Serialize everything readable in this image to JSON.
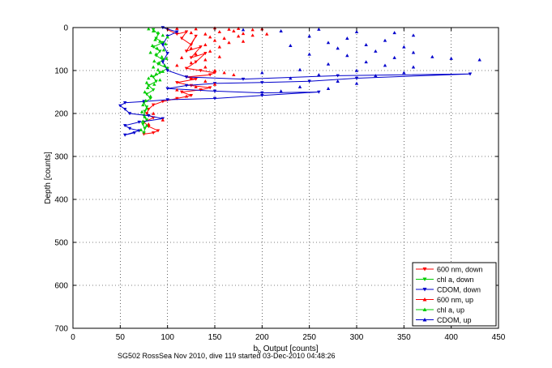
{
  "chart_data": {
    "type": "scatter",
    "xlabel_main": "b",
    "xlabel_sub": "b",
    "xlabel_rest": " Output [counts]",
    "ylabel": "Depth [counts]",
    "caption": "SG502 RossSea Nov 2010, dive 119 started 03-Dec-2010 04:48:26",
    "xlim": [
      0,
      450
    ],
    "ylim": [
      0,
      700
    ],
    "y_reversed": true,
    "grid": true,
    "x_ticks": [
      "0",
      "50",
      "100",
      "150",
      "200",
      "250",
      "300",
      "350",
      "400",
      "450"
    ],
    "y_ticks": [
      "0",
      "100",
      "200",
      "300",
      "400",
      "500",
      "600",
      "700"
    ],
    "legend_position": "bottom-right",
    "series": [
      {
        "name": "600 nm, down",
        "color": "#ff0000",
        "marker": "triangle-down",
        "connected": true,
        "points": [
          [
            100,
            5
          ],
          [
            110,
            15
          ],
          [
            120,
            10
          ],
          [
            115,
            25
          ],
          [
            125,
            40
          ],
          [
            130,
            20
          ],
          [
            120,
            55
          ],
          [
            135,
            45
          ],
          [
            125,
            70
          ],
          [
            140,
            60
          ],
          [
            130,
            80
          ],
          [
            120,
            95
          ],
          [
            135,
            100
          ],
          [
            150,
            105
          ],
          [
            145,
            110
          ],
          [
            120,
            115
          ],
          [
            130,
            120
          ],
          [
            110,
            128
          ],
          [
            125,
            135
          ],
          [
            145,
            140
          ],
          [
            135,
            145
          ],
          [
            115,
            150
          ],
          [
            125,
            158
          ],
          [
            110,
            165
          ],
          [
            95,
            172
          ],
          [
            85,
            180
          ],
          [
            80,
            190
          ],
          [
            78,
            200
          ],
          [
            85,
            210
          ],
          [
            75,
            220
          ],
          [
            80,
            230
          ],
          [
            90,
            240
          ],
          [
            85,
            245
          ],
          [
            75,
            248
          ]
        ]
      },
      {
        "name": "chl a, down",
        "color": "#00cc00",
        "marker": "triangle-down",
        "connected": true,
        "points": [
          [
            85,
            5
          ],
          [
            90,
            15
          ],
          [
            88,
            25
          ],
          [
            95,
            35
          ],
          [
            85,
            45
          ],
          [
            92,
            55
          ],
          [
            88,
            65
          ],
          [
            95,
            75
          ],
          [
            90,
            85
          ],
          [
            100,
            95
          ],
          [
            92,
            105
          ],
          [
            85,
            115
          ],
          [
            88,
            125
          ],
          [
            80,
            135
          ],
          [
            85,
            145
          ],
          [
            78,
            155
          ],
          [
            82,
            165
          ],
          [
            75,
            175
          ],
          [
            78,
            185
          ],
          [
            76,
            195
          ],
          [
            75,
            205
          ],
          [
            78,
            215
          ],
          [
            74,
            225
          ],
          [
            76,
            235
          ],
          [
            75,
            245
          ]
        ]
      },
      {
        "name": "CDOM, down",
        "color": "#0000cc",
        "marker": "triangle-down",
        "connected": true,
        "points": [
          [
            95,
            0
          ],
          [
            110,
            10
          ],
          [
            100,
            20
          ],
          [
            95,
            40
          ],
          [
            100,
            60
          ],
          [
            95,
            80
          ],
          [
            100,
            100
          ],
          [
            120,
            115
          ],
          [
            180,
            120
          ],
          [
            280,
            112
          ],
          [
            420,
            108
          ],
          [
            300,
            118
          ],
          [
            250,
            125
          ],
          [
            200,
            128
          ],
          [
            150,
            130
          ],
          [
            120,
            135
          ],
          [
            100,
            142
          ],
          [
            150,
            148
          ],
          [
            200,
            152
          ],
          [
            260,
            150
          ],
          [
            200,
            158
          ],
          [
            150,
            165
          ],
          [
            100,
            168
          ],
          [
            75,
            172
          ],
          [
            55,
            175
          ],
          [
            50,
            182
          ],
          [
            55,
            190
          ],
          [
            60,
            200
          ],
          [
            80,
            205
          ],
          [
            95,
            212
          ],
          [
            70,
            220
          ],
          [
            55,
            228
          ],
          [
            60,
            235
          ],
          [
            70,
            240
          ],
          [
            55,
            250
          ],
          [
            65,
            245
          ]
        ]
      },
      {
        "name": "600 nm, up",
        "color": "#ff0000",
        "marker": "triangle-up",
        "connected": false,
        "points": [
          [
            110,
            2
          ],
          [
            130,
            3
          ],
          [
            150,
            1
          ],
          [
            165,
            4
          ],
          [
            175,
            2
          ],
          [
            190,
            5
          ],
          [
            200,
            3
          ],
          [
            125,
            12
          ],
          [
            140,
            15
          ],
          [
            155,
            10
          ],
          [
            170,
            8
          ],
          [
            180,
            14
          ],
          [
            145,
            22
          ],
          [
            160,
            25
          ],
          [
            175,
            20
          ],
          [
            190,
            18
          ],
          [
            205,
            15
          ],
          [
            150,
            30
          ],
          [
            165,
            35
          ],
          [
            180,
            32
          ],
          [
            140,
            40
          ],
          [
            125,
            48
          ],
          [
            155,
            45
          ],
          [
            145,
            55
          ],
          [
            130,
            62
          ],
          [
            115,
            70
          ],
          [
            140,
            75
          ],
          [
            155,
            68
          ],
          [
            125,
            82
          ],
          [
            110,
            88
          ],
          [
            140,
            92
          ],
          [
            150,
            100
          ],
          [
            160,
            105
          ],
          [
            170,
            110
          ],
          [
            125,
            118
          ],
          [
            140,
            125
          ],
          [
            130,
            138
          ],
          [
            150,
            132
          ],
          [
            110,
            145
          ],
          [
            120,
            160
          ],
          [
            85,
            200
          ],
          [
            95,
            215
          ],
          [
            80,
            225
          ]
        ]
      },
      {
        "name": "chl a, up",
        "color": "#00cc00",
        "marker": "triangle-up",
        "connected": false,
        "points": [
          [
            80,
            3
          ],
          [
            85,
            8
          ],
          [
            90,
            12
          ],
          [
            95,
            18
          ],
          [
            100,
            22
          ],
          [
            87,
            28
          ],
          [
            92,
            32
          ],
          [
            98,
            38
          ],
          [
            84,
            42
          ],
          [
            89,
            48
          ],
          [
            96,
            52
          ],
          [
            82,
            58
          ],
          [
            88,
            62
          ],
          [
            94,
            68
          ],
          [
            99,
            72
          ],
          [
            86,
            78
          ],
          [
            91,
            82
          ],
          [
            97,
            88
          ],
          [
            85,
            92
          ],
          [
            90,
            98
          ],
          [
            95,
            102
          ],
          [
            88,
            108
          ],
          [
            83,
            112
          ],
          [
            80,
            118
          ],
          [
            92,
            122
          ],
          [
            78,
            128
          ],
          [
            86,
            132
          ],
          [
            79,
            140
          ],
          [
            76,
            150
          ],
          [
            82,
            160
          ],
          [
            77,
            170
          ],
          [
            74,
            180
          ],
          [
            78,
            188
          ],
          [
            73,
            196
          ],
          [
            76,
            208
          ],
          [
            74,
            218
          ],
          [
            78,
            228
          ],
          [
            72,
            238
          ]
        ]
      },
      {
        "name": "CDOM, up",
        "color": "#0000cc",
        "marker": "triangle-up",
        "connected": false,
        "points": [
          [
            180,
            5
          ],
          [
            220,
            8
          ],
          [
            260,
            4
          ],
          [
            300,
            10
          ],
          [
            340,
            12
          ],
          [
            360,
            18
          ],
          [
            250,
            20
          ],
          [
            290,
            25
          ],
          [
            330,
            30
          ],
          [
            270,
            35
          ],
          [
            310,
            40
          ],
          [
            230,
            42
          ],
          [
            350,
            45
          ],
          [
            280,
            48
          ],
          [
            320,
            55
          ],
          [
            360,
            58
          ],
          [
            250,
            62
          ],
          [
            290,
            65
          ],
          [
            340,
            70
          ],
          [
            380,
            68
          ],
          [
            400,
            72
          ],
          [
            430,
            75
          ],
          [
            310,
            80
          ],
          [
            270,
            85
          ],
          [
            330,
            88
          ],
          [
            360,
            92
          ],
          [
            240,
            98
          ],
          [
            300,
            100
          ],
          [
            200,
            105
          ],
          [
            350,
            105
          ],
          [
            260,
            110
          ],
          [
            320,
            112
          ],
          [
            230,
            118
          ],
          [
            280,
            125
          ],
          [
            300,
            130
          ],
          [
            240,
            138
          ],
          [
            270,
            142
          ],
          [
            220,
            148
          ]
        ]
      }
    ]
  }
}
